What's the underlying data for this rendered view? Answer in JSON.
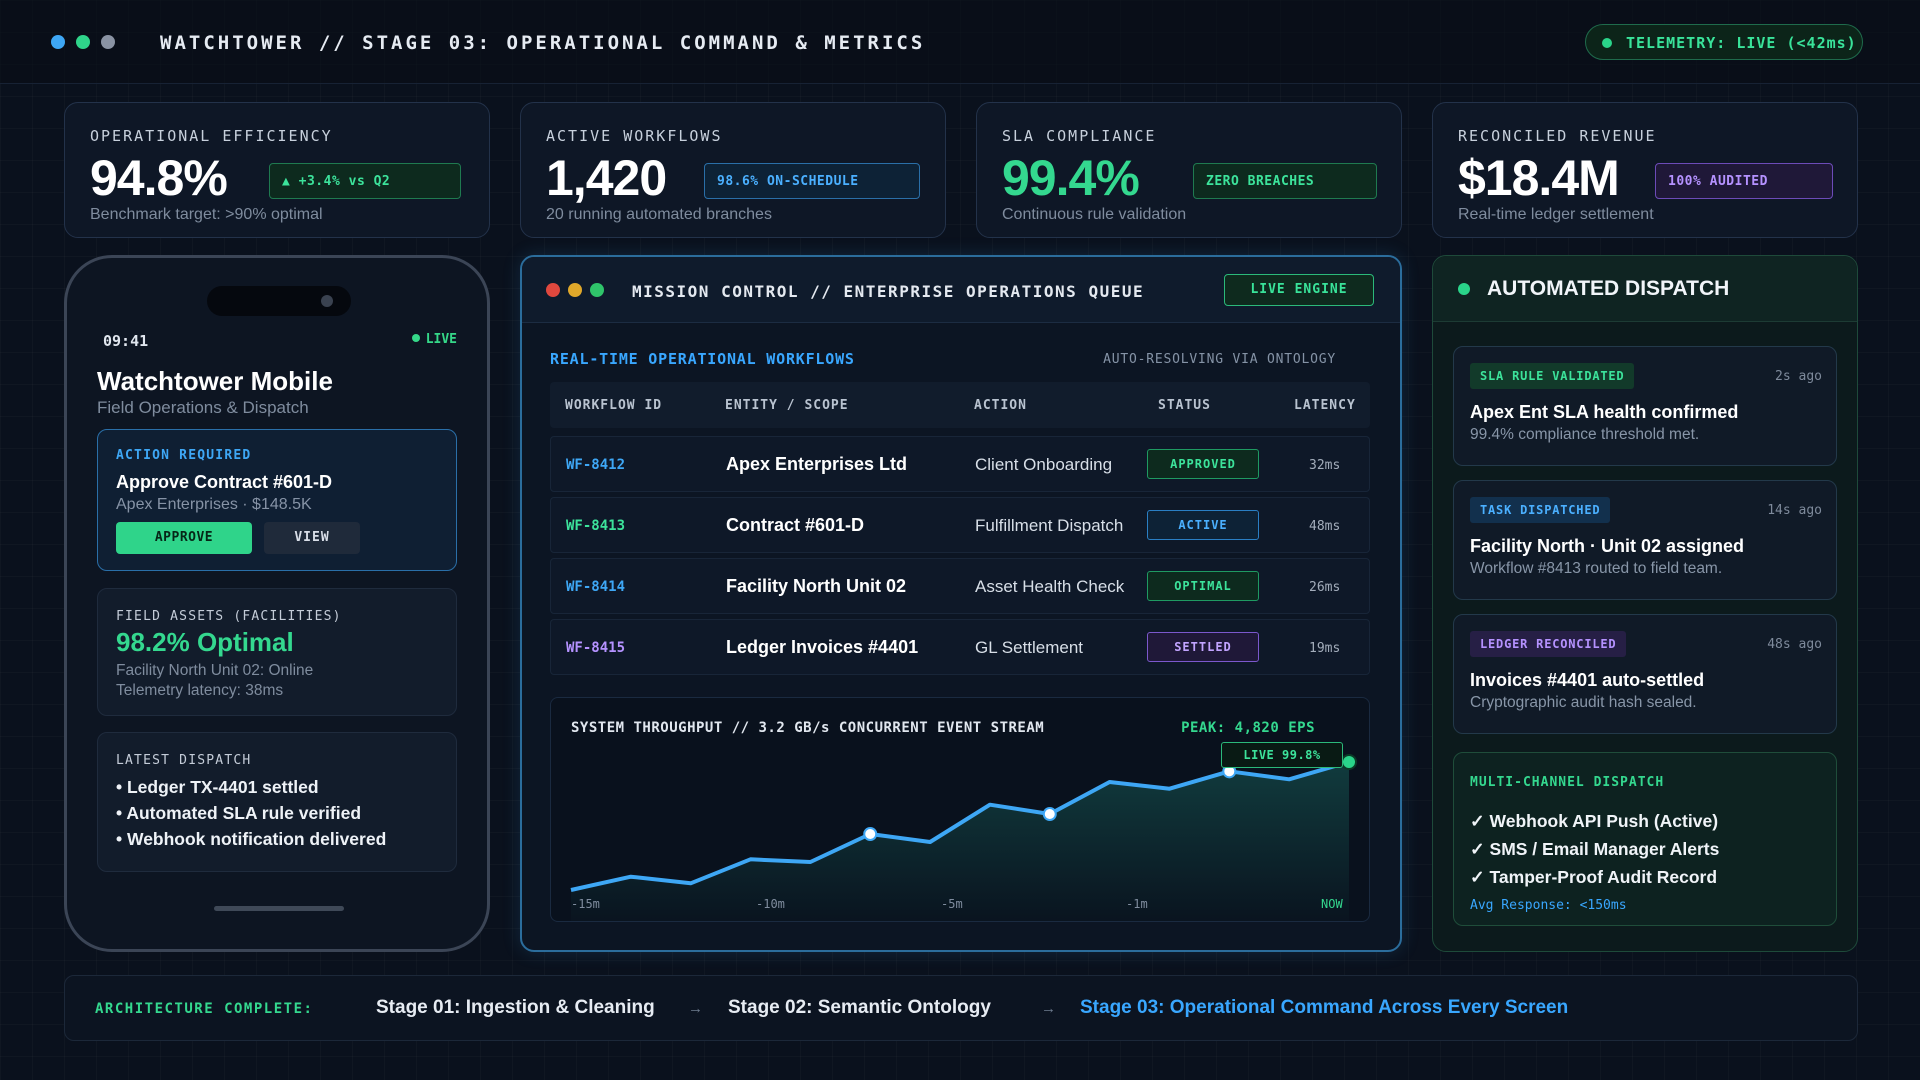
{
  "header": {
    "title": "WATCHTOWER // STAGE 03: OPERATIONAL COMMAND & METRICS",
    "telemetry": "TELEMETRY: LIVE (<42ms)",
    "dot_colors": [
      "#3ea7f5",
      "#2fd48a",
      "#8a93a3"
    ]
  },
  "kpis": [
    {
      "label": "OPERATIONAL EFFICIENCY",
      "value": "94.8%",
      "badge": "▲ +3.4% vs Q2",
      "sub": "Benchmark target: >90% optimal"
    },
    {
      "label": "ACTIVE WORKFLOWS",
      "value": "1,420",
      "badge": "98.6% ON-SCHEDULE",
      "sub": "20 running automated branches"
    },
    {
      "label": "SLA COMPLIANCE",
      "value": "99.4%",
      "badge": "ZERO BREACHES",
      "sub": "Continuous rule validation"
    },
    {
      "label": "RECONCILED REVENUE",
      "value": "$18.4M",
      "badge": "100% AUDITED",
      "sub": "Real-time ledger settlement"
    }
  ],
  "phone": {
    "time": "09:41",
    "live": "LIVE",
    "app_title": "Watchtower Mobile",
    "app_sub": "Field Operations & Dispatch",
    "action": {
      "key": "ACTION REQUIRED",
      "title": "Approve Contract #601-D",
      "detail": "Apex Enterprises · $148.5K",
      "approve": "APPROVE",
      "view": "VIEW"
    },
    "assets": {
      "key": "FIELD ASSETS (FACILITIES)",
      "value": "98.2% Optimal",
      "line1": "Facility North Unit 02: Online",
      "line2": "Telemetry latency: 38ms"
    },
    "dispatch": {
      "key": "LATEST DISPATCH",
      "items": [
        "• Ledger TX-4401 settled",
        "• Automated SLA rule verified",
        "• Webhook notification delivered"
      ]
    }
  },
  "mission": {
    "title": "MISSION CONTROL // ENTERPRISE OPERATIONS QUEUE",
    "engine": "LIVE ENGINE",
    "section_title": "REAL-TIME OPERATIONAL WORKFLOWS",
    "auto": "AUTO-RESOLVING VIA ONTOLOGY",
    "columns": [
      "WORKFLOW ID",
      "ENTITY / SCOPE",
      "ACTION",
      "STATUS",
      "LATENCY"
    ],
    "rows": [
      {
        "id": "WF-8412",
        "entity": "Apex Enterprises Ltd",
        "action": "Client Onboarding",
        "status": "APPROVED",
        "latency": "32ms"
      },
      {
        "id": "WF-8413",
        "entity": "Contract #601-D",
        "action": "Fulfillment Dispatch",
        "status": "ACTIVE",
        "latency": "48ms"
      },
      {
        "id": "WF-8414",
        "entity": "Facility North Unit 02",
        "action": "Asset Health Check",
        "status": "OPTIMAL",
        "latency": "26ms"
      },
      {
        "id": "WF-8415",
        "entity": "Ledger Invoices #4401",
        "action": "GL Settlement",
        "status": "SETTLED",
        "latency": "19ms"
      }
    ],
    "chart_title": "SYSTEM THROUGHPUT // 3.2 GB/s CONCURRENT EVENT STREAM",
    "chart_peak": "PEAK: 4,820 EPS",
    "chart_live": "LIVE 99.8%"
  },
  "chart_data": {
    "type": "area",
    "title": "SYSTEM THROUGHPUT // 3.2 GB/s CONCURRENT EVENT STREAM",
    "x_tick_labels": [
      "-15m",
      "-10m",
      "-5m",
      "-1m",
      "NOW"
    ],
    "values": [
      6,
      16,
      11,
      29,
      27,
      48,
      42,
      70,
      63,
      87,
      82,
      95,
      89,
      102
    ],
    "ylim": [
      0,
      120
    ],
    "color": "#3ea7f5"
  },
  "dispatch": {
    "title": "AUTOMATED DISPATCH",
    "cards": [
      {
        "tag": "SLA RULE VALIDATED",
        "ago": "2s ago",
        "title": "Apex Ent SLA health confirmed",
        "sub": "99.4% compliance threshold met."
      },
      {
        "tag": "TASK DISPATCHED",
        "ago": "14s ago",
        "title": "Facility North · Unit 02 assigned",
        "sub": "Workflow #8413 routed to field team."
      },
      {
        "tag": "LEDGER RECONCILED",
        "ago": "48s ago",
        "title": "Invoices #4401 auto-settled",
        "sub": "Cryptographic audit hash sealed."
      }
    ],
    "multi": {
      "key": "MULTI-CHANNEL DISPATCH",
      "items": [
        "✓ Webhook API Push (Active)",
        "✓ SMS / Email Manager Alerts",
        "✓ Tamper-Proof Audit Record"
      ],
      "avg": "Avg Response: <150ms"
    }
  },
  "footer": {
    "label": "ARCHITECTURE COMPLETE:",
    "stage1": "Stage 01: Ingestion & Cleaning",
    "stage2": "Stage 02: Semantic Ontology",
    "stage3": "Stage 03: Operational Command Across Every Screen",
    "arrow": "→"
  }
}
